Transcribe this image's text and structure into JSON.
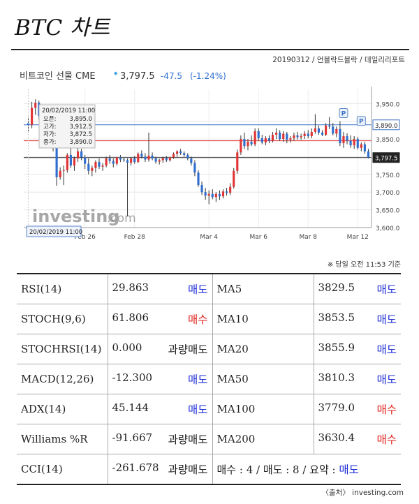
{
  "header": {
    "title": "BTC 차트",
    "credit": "20190312 / 언블락드블락 / 데일리리포트"
  },
  "chart_data": {
    "type": "candlestick",
    "instrument": "비트코인 선물 CME",
    "price": "3,797.5",
    "change": "-47.5",
    "change_pct": "(-1.24%)",
    "watermark_main": "investing",
    "watermark_suffix": ".com",
    "ylim": [
      3600,
      3990
    ],
    "y_ticks": [
      {
        "v": 3950,
        "label": "3,950.0"
      },
      {
        "v": 3900,
        "label": ""
      },
      {
        "v": 3850,
        "label": "3,850.0"
      },
      {
        "v": 3800,
        "label": ""
      },
      {
        "v": 3750,
        "label": "3,750.0"
      },
      {
        "v": 3700,
        "label": "3,700.0"
      },
      {
        "v": 3650,
        "label": "3,650.0"
      },
      {
        "v": 3600,
        "label": "3,600.0"
      }
    ],
    "x_ticks": [
      {
        "i": 16,
        "label": "Feb 26"
      },
      {
        "i": 30,
        "label": "Feb 28"
      },
      {
        "i": 51,
        "label": "Mar 4"
      },
      {
        "i": 65,
        "label": "Mar 6"
      },
      {
        "i": 79,
        "label": "Mar 8"
      },
      {
        "i": 93,
        "label": "Mar 12"
      }
    ],
    "x_cursor_label": "20/02/2019 11:00",
    "levels": [
      {
        "value": 3890.0,
        "label": "3,890.0",
        "color": "#3f73c6"
      },
      {
        "value": 3797.5,
        "label": "3,797.5",
        "color": "#222222"
      },
      {
        "value": 3845.0,
        "label": "",
        "color": "#e03535"
      }
    ],
    "tooltip": {
      "date": "20/02/2019 11:00",
      "rows": [
        {
          "k": "오픈:",
          "v": "3,895.0"
        },
        {
          "k": "고가:",
          "v": "3,912.5"
        },
        {
          "k": "저가:",
          "v": "3,872.5"
        },
        {
          "k": "종가:",
          "v": "3,890.0"
        }
      ]
    },
    "markers": [
      {
        "i": 89,
        "price": 3920,
        "label": "P"
      },
      {
        "i": 94,
        "price": 3898,
        "label": "P"
      }
    ],
    "candles": [
      {
        "o": 3895,
        "h": 3912,
        "l": 3872,
        "c": 3890
      },
      {
        "o": 3890,
        "h": 3955,
        "l": 3880,
        "c": 3938
      },
      {
        "o": 3938,
        "h": 3962,
        "l": 3918,
        "c": 3952
      },
      {
        "o": 3952,
        "h": 3958,
        "l": 3905,
        "c": 3915
      },
      {
        "o": 3915,
        "h": 3930,
        "l": 3885,
        "c": 3905
      },
      {
        "o": 3905,
        "h": 3915,
        "l": 3895,
        "c": 3902
      },
      {
        "o": 3902,
        "h": 3912,
        "l": 3860,
        "c": 3870
      },
      {
        "o": 3870,
        "h": 3878,
        "l": 3815,
        "c": 3825
      },
      {
        "o": 3825,
        "h": 3830,
        "l": 3718,
        "c": 3742
      },
      {
        "o": 3742,
        "h": 3770,
        "l": 3735,
        "c": 3760
      },
      {
        "o": 3760,
        "h": 3775,
        "l": 3720,
        "c": 3762
      },
      {
        "o": 3762,
        "h": 3810,
        "l": 3755,
        "c": 3805
      },
      {
        "o": 3805,
        "h": 3830,
        "l": 3768,
        "c": 3775
      },
      {
        "o": 3775,
        "h": 3800,
        "l": 3760,
        "c": 3795
      },
      {
        "o": 3795,
        "h": 3840,
        "l": 3785,
        "c": 3815
      },
      {
        "o": 3815,
        "h": 3822,
        "l": 3790,
        "c": 3798
      },
      {
        "o": 3798,
        "h": 3805,
        "l": 3765,
        "c": 3780
      },
      {
        "o": 3780,
        "h": 3795,
        "l": 3750,
        "c": 3760
      },
      {
        "o": 3760,
        "h": 3775,
        "l": 3745,
        "c": 3768
      },
      {
        "o": 3768,
        "h": 3790,
        "l": 3755,
        "c": 3785
      },
      {
        "o": 3785,
        "h": 3795,
        "l": 3765,
        "c": 3772
      },
      {
        "o": 3772,
        "h": 3782,
        "l": 3760,
        "c": 3775
      },
      {
        "o": 3775,
        "h": 3800,
        "l": 3770,
        "c": 3795
      },
      {
        "o": 3795,
        "h": 3805,
        "l": 3780,
        "c": 3788
      },
      {
        "o": 3788,
        "h": 3795,
        "l": 3770,
        "c": 3780
      },
      {
        "o": 3780,
        "h": 3800,
        "l": 3775,
        "c": 3798
      },
      {
        "o": 3798,
        "h": 3805,
        "l": 3785,
        "c": 3792
      },
      {
        "o": 3792,
        "h": 3798,
        "l": 3785,
        "c": 3790
      },
      {
        "o": 3790,
        "h": 3795,
        "l": 3632,
        "c": 3783
      },
      {
        "o": 3783,
        "h": 3798,
        "l": 3775,
        "c": 3795
      },
      {
        "o": 3795,
        "h": 3802,
        "l": 3780,
        "c": 3785
      },
      {
        "o": 3785,
        "h": 3812,
        "l": 3782,
        "c": 3808
      },
      {
        "o": 3808,
        "h": 3818,
        "l": 3795,
        "c": 3800
      },
      {
        "o": 3800,
        "h": 3810,
        "l": 3785,
        "c": 3792
      },
      {
        "o": 3792,
        "h": 3868,
        "l": 3786,
        "c": 3803
      },
      {
        "o": 3803,
        "h": 3812,
        "l": 3790,
        "c": 3795
      },
      {
        "o": 3795,
        "h": 3800,
        "l": 3780,
        "c": 3786
      },
      {
        "o": 3786,
        "h": 3794,
        "l": 3778,
        "c": 3790
      },
      {
        "o": 3790,
        "h": 3800,
        "l": 3782,
        "c": 3796
      },
      {
        "o": 3796,
        "h": 3802,
        "l": 3785,
        "c": 3790
      },
      {
        "o": 3790,
        "h": 3800,
        "l": 3786,
        "c": 3798
      },
      {
        "o": 3798,
        "h": 3812,
        "l": 3794,
        "c": 3808
      },
      {
        "o": 3808,
        "h": 3818,
        "l": 3800,
        "c": 3815
      },
      {
        "o": 3815,
        "h": 3822,
        "l": 3805,
        "c": 3810
      },
      {
        "o": 3810,
        "h": 3815,
        "l": 3800,
        "c": 3805
      },
      {
        "o": 3805,
        "h": 3810,
        "l": 3790,
        "c": 3795
      },
      {
        "o": 3795,
        "h": 3800,
        "l": 3775,
        "c": 3782
      },
      {
        "o": 3782,
        "h": 3790,
        "l": 3745,
        "c": 3755
      },
      {
        "o": 3755,
        "h": 3762,
        "l": 3715,
        "c": 3720
      },
      {
        "o": 3720,
        "h": 3730,
        "l": 3692,
        "c": 3700
      },
      {
        "o": 3700,
        "h": 3712,
        "l": 3678,
        "c": 3690
      },
      {
        "o": 3690,
        "h": 3705,
        "l": 3666,
        "c": 3695
      },
      {
        "o": 3695,
        "h": 3708,
        "l": 3680,
        "c": 3686
      },
      {
        "o": 3686,
        "h": 3700,
        "l": 3672,
        "c": 3695
      },
      {
        "o": 3695,
        "h": 3705,
        "l": 3678,
        "c": 3688
      },
      {
        "o": 3688,
        "h": 3708,
        "l": 3682,
        "c": 3702
      },
      {
        "o": 3702,
        "h": 3712,
        "l": 3690,
        "c": 3698
      },
      {
        "o": 3698,
        "h": 3725,
        "l": 3692,
        "c": 3715
      },
      {
        "o": 3715,
        "h": 3768,
        "l": 3710,
        "c": 3760
      },
      {
        "o": 3760,
        "h": 3820,
        "l": 3752,
        "c": 3812
      },
      {
        "o": 3812,
        "h": 3860,
        "l": 3805,
        "c": 3850
      },
      {
        "o": 3850,
        "h": 3868,
        "l": 3822,
        "c": 3830
      },
      {
        "o": 3830,
        "h": 3850,
        "l": 3818,
        "c": 3842
      },
      {
        "o": 3842,
        "h": 3860,
        "l": 3830,
        "c": 3835
      },
      {
        "o": 3835,
        "h": 3880,
        "l": 3830,
        "c": 3872
      },
      {
        "o": 3872,
        "h": 3880,
        "l": 3845,
        "c": 3852
      },
      {
        "o": 3852,
        "h": 3862,
        "l": 3835,
        "c": 3840
      },
      {
        "o": 3840,
        "h": 3858,
        "l": 3832,
        "c": 3852
      },
      {
        "o": 3852,
        "h": 3860,
        "l": 3838,
        "c": 3845
      },
      {
        "o": 3845,
        "h": 3870,
        "l": 3840,
        "c": 3862
      },
      {
        "o": 3862,
        "h": 3880,
        "l": 3850,
        "c": 3868
      },
      {
        "o": 3868,
        "h": 3875,
        "l": 3845,
        "c": 3850
      },
      {
        "o": 3850,
        "h": 3872,
        "l": 3842,
        "c": 3865
      },
      {
        "o": 3865,
        "h": 3870,
        "l": 3838,
        "c": 3848
      },
      {
        "o": 3848,
        "h": 3858,
        "l": 3840,
        "c": 3852
      },
      {
        "o": 3852,
        "h": 3868,
        "l": 3845,
        "c": 3860
      },
      {
        "o": 3860,
        "h": 3870,
        "l": 3848,
        "c": 3855
      },
      {
        "o": 3855,
        "h": 3865,
        "l": 3848,
        "c": 3858
      },
      {
        "o": 3858,
        "h": 3872,
        "l": 3850,
        "c": 3865
      },
      {
        "o": 3865,
        "h": 3875,
        "l": 3852,
        "c": 3858
      },
      {
        "o": 3858,
        "h": 3880,
        "l": 3852,
        "c": 3870
      },
      {
        "o": 3870,
        "h": 3920,
        "l": 3865,
        "c": 3880
      },
      {
        "o": 3880,
        "h": 3888,
        "l": 3862,
        "c": 3868
      },
      {
        "o": 3868,
        "h": 3875,
        "l": 3858,
        "c": 3862
      },
      {
        "o": 3862,
        "h": 3895,
        "l": 3858,
        "c": 3888
      },
      {
        "o": 3888,
        "h": 3912,
        "l": 3878,
        "c": 3885
      },
      {
        "o": 3885,
        "h": 3895,
        "l": 3860,
        "c": 3865
      },
      {
        "o": 3865,
        "h": 3885,
        "l": 3855,
        "c": 3878
      },
      {
        "o": 3878,
        "h": 3900,
        "l": 3830,
        "c": 3838
      },
      {
        "o": 3838,
        "h": 3870,
        "l": 3825,
        "c": 3858
      },
      {
        "o": 3858,
        "h": 3866,
        "l": 3835,
        "c": 3845
      },
      {
        "o": 3845,
        "h": 3860,
        "l": 3825,
        "c": 3832
      },
      {
        "o": 3832,
        "h": 3858,
        "l": 3822,
        "c": 3850
      },
      {
        "o": 3850,
        "h": 3856,
        "l": 3820,
        "c": 3825
      },
      {
        "o": 3825,
        "h": 3840,
        "l": 3815,
        "c": 3835
      },
      {
        "o": 3835,
        "h": 3842,
        "l": 3808,
        "c": 3815
      },
      {
        "o": 3815,
        "h": 3822,
        "l": 3795,
        "c": 3797.5
      }
    ]
  },
  "timestamp_note": "※ 당일 오전 11:53 기준",
  "indicators": [
    {
      "name": "RSI(14)",
      "value": "29.863",
      "signal": "매도",
      "signal_color": "blue",
      "ma": "MA5",
      "ma_value": "3829.5",
      "ma_signal": "매도",
      "ma_signal_color": "blue"
    },
    {
      "name": "STOCH(9,6)",
      "value": "61.806",
      "signal": "매수",
      "signal_color": "red",
      "ma": "MA10",
      "ma_value": "3853.5",
      "ma_signal": "매도",
      "ma_signal_color": "blue"
    },
    {
      "name": "STOCHRSI(14)",
      "value": "0.000",
      "signal": "과량매도",
      "signal_color": "black",
      "ma": "MA20",
      "ma_value": "3855.9",
      "ma_signal": "매도",
      "ma_signal_color": "blue"
    },
    {
      "name": "MACD(12,26)",
      "value": "-12.300",
      "signal": "매도",
      "signal_color": "blue",
      "ma": "MA50",
      "ma_value": "3810.3",
      "ma_signal": "매도",
      "ma_signal_color": "blue"
    },
    {
      "name": "ADX(14)",
      "value": "45.144",
      "signal": "매도",
      "signal_color": "blue",
      "ma": "MA100",
      "ma_value": "3779.0",
      "ma_signal": "매수",
      "ma_signal_color": "red"
    },
    {
      "name": "Williams %R",
      "value": "-91.667",
      "signal": "과량매도",
      "signal_color": "black",
      "ma": "MA200",
      "ma_value": "3630.4",
      "ma_signal": "매수",
      "ma_signal_color": "red"
    }
  ],
  "cci": {
    "name": "CCI(14)",
    "value": "-261.678",
    "signal": "과량매도",
    "signal_color": "black"
  },
  "summary": {
    "text": "매수 : 4 / 매도 : 8 / 요약 : ",
    "result": "매도",
    "result_color": "blue"
  },
  "source": "〈출처〉 investing.com",
  "colors": {
    "bull": "#e03535",
    "bear": "#2f6ecf",
    "accent": "#3f73c6",
    "down": "#1f2fd6",
    "up": "#e0201a"
  }
}
